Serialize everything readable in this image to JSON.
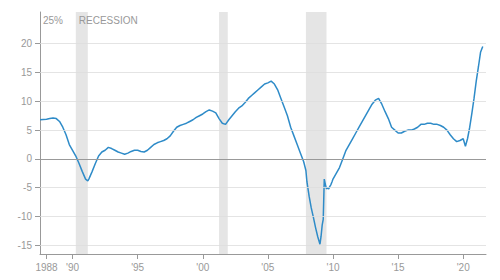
{
  "chart_data": {
    "type": "line",
    "color": "#2e8bc8",
    "grid": true,
    "annotations": [
      {
        "text": "25%",
        "x": 1987.5,
        "y": 25.5
      }
    ],
    "shaded": {
      "label": "RECESSION",
      "color": "#e5e5e5",
      "ranges": [
        [
          1990.25,
          1991.17
        ],
        [
          2001.25,
          2001.92
        ],
        [
          2007.92,
          2009.5
        ]
      ]
    },
    "xlim": [
      1987.5,
      2021.75
    ],
    "xticks": [
      1988,
      {
        "value": 1990,
        "label": "'90"
      },
      {
        "value": 1995,
        "label": "'95"
      },
      {
        "value": 2000,
        "label": "'00"
      },
      {
        "value": 2005,
        "label": "'05"
      },
      {
        "value": 2010,
        "label": "'10"
      },
      {
        "value": 2015,
        "label": "'15"
      },
      {
        "value": 2020,
        "label": "'20"
      }
    ],
    "ylim": [
      -16.5,
      25.5
    ],
    "yticks": [
      -15,
      -10,
      -5,
      0,
      5,
      10,
      15,
      20
    ],
    "x": [
      1987.5,
      1988.0,
      1988.25,
      1988.5,
      1988.75,
      1989.0,
      1989.25,
      1989.5,
      1989.75,
      1990.0,
      1990.25,
      1990.5,
      1990.75,
      1991.0,
      1991.17,
      1991.25,
      1991.5,
      1991.75,
      1992.0,
      1992.25,
      1992.5,
      1992.75,
      1993.0,
      1993.25,
      1993.5,
      1993.75,
      1994.0,
      1994.25,
      1994.5,
      1994.75,
      1995.0,
      1995.25,
      1995.5,
      1995.75,
      1996.0,
      1996.25,
      1996.5,
      1996.75,
      1997.0,
      1997.25,
      1997.5,
      1997.75,
      1998.0,
      1998.25,
      1998.5,
      1998.75,
      1999.0,
      1999.25,
      1999.5,
      1999.75,
      2000.0,
      2000.25,
      2000.5,
      2000.75,
      2001.0,
      2001.25,
      2001.5,
      2001.75,
      2002.0,
      2002.25,
      2002.5,
      2002.75,
      2003.0,
      2003.25,
      2003.5,
      2003.75,
      2004.0,
      2004.25,
      2004.5,
      2004.75,
      2005.0,
      2005.25,
      2005.5,
      2005.75,
      2006.0,
      2006.25,
      2006.5,
      2006.75,
      2007.0,
      2007.25,
      2007.5,
      2007.75,
      2007.92,
      2008.0,
      2008.17,
      2008.33,
      2008.5,
      2008.67,
      2008.83,
      2009.0,
      2009.08,
      2009.17,
      2009.25,
      2009.33,
      2009.42,
      2009.5,
      2009.58,
      2009.67,
      2009.75,
      2009.83,
      2009.92,
      2010.0,
      2010.25,
      2010.5,
      2010.75,
      2011.0,
      2011.25,
      2011.5,
      2011.75,
      2012.0,
      2012.25,
      2012.5,
      2012.75,
      2013.0,
      2013.25,
      2013.5,
      2013.75,
      2014.0,
      2014.25,
      2014.5,
      2014.75,
      2015.0,
      2015.25,
      2015.5,
      2015.75,
      2016.0,
      2016.25,
      2016.5,
      2016.75,
      2017.0,
      2017.25,
      2017.5,
      2017.75,
      2018.0,
      2018.25,
      2018.5,
      2018.75,
      2019.0,
      2019.25,
      2019.5,
      2019.75,
      2020.0,
      2020.17,
      2020.33,
      2020.5,
      2020.67,
      2020.83,
      2021.0,
      2021.17,
      2021.33,
      2021.5
    ],
    "values": [
      6.8,
      6.9,
      7.0,
      7.1,
      7.0,
      6.5,
      5.5,
      4.2,
      2.5,
      1.5,
      0.5,
      -0.8,
      -2.2,
      -3.5,
      -3.8,
      -3.5,
      -2.2,
      -0.8,
      0.5,
      1.2,
      1.5,
      2.0,
      1.8,
      1.5,
      1.2,
      1.0,
      0.8,
      1.0,
      1.3,
      1.5,
      1.5,
      1.3,
      1.2,
      1.5,
      2.0,
      2.5,
      2.8,
      3.0,
      3.2,
      3.5,
      4.0,
      4.8,
      5.5,
      5.8,
      6.0,
      6.2,
      6.5,
      6.8,
      7.2,
      7.5,
      7.8,
      8.2,
      8.5,
      8.3,
      8.0,
      7.0,
      6.2,
      6.0,
      6.8,
      7.5,
      8.2,
      8.8,
      9.2,
      9.8,
      10.5,
      11.0,
      11.5,
      12.0,
      12.5,
      13.0,
      13.2,
      13.5,
      13.0,
      12.0,
      10.5,
      9.0,
      7.5,
      5.5,
      4.0,
      2.5,
      1.0,
      -0.5,
      -2.0,
      -4.0,
      -6.5,
      -8.5,
      -10.2,
      -12.0,
      -13.5,
      -14.8,
      -13.5,
      -11.5,
      -10.5,
      -3.5,
      -4.5,
      -5.2,
      -5.0,
      -5.2,
      -4.8,
      -4.5,
      -4.0,
      -3.5,
      -2.5,
      -1.5,
      0.0,
      1.5,
      2.5,
      3.5,
      4.5,
      5.5,
      6.5,
      7.5,
      8.5,
      9.5,
      10.2,
      10.5,
      9.5,
      8.2,
      7.0,
      5.5,
      5.0,
      4.5,
      4.5,
      4.8,
      5.0,
      5.0,
      5.2,
      5.5,
      6.0,
      6.0,
      6.2,
      6.2,
      6.0,
      6.0,
      5.8,
      5.5,
      5.0,
      4.2,
      3.5,
      3.0,
      3.2,
      3.5,
      2.2,
      3.5,
      5.5,
      8.0,
      10.5,
      13.5,
      16.0,
      18.5,
      19.5
    ]
  }
}
